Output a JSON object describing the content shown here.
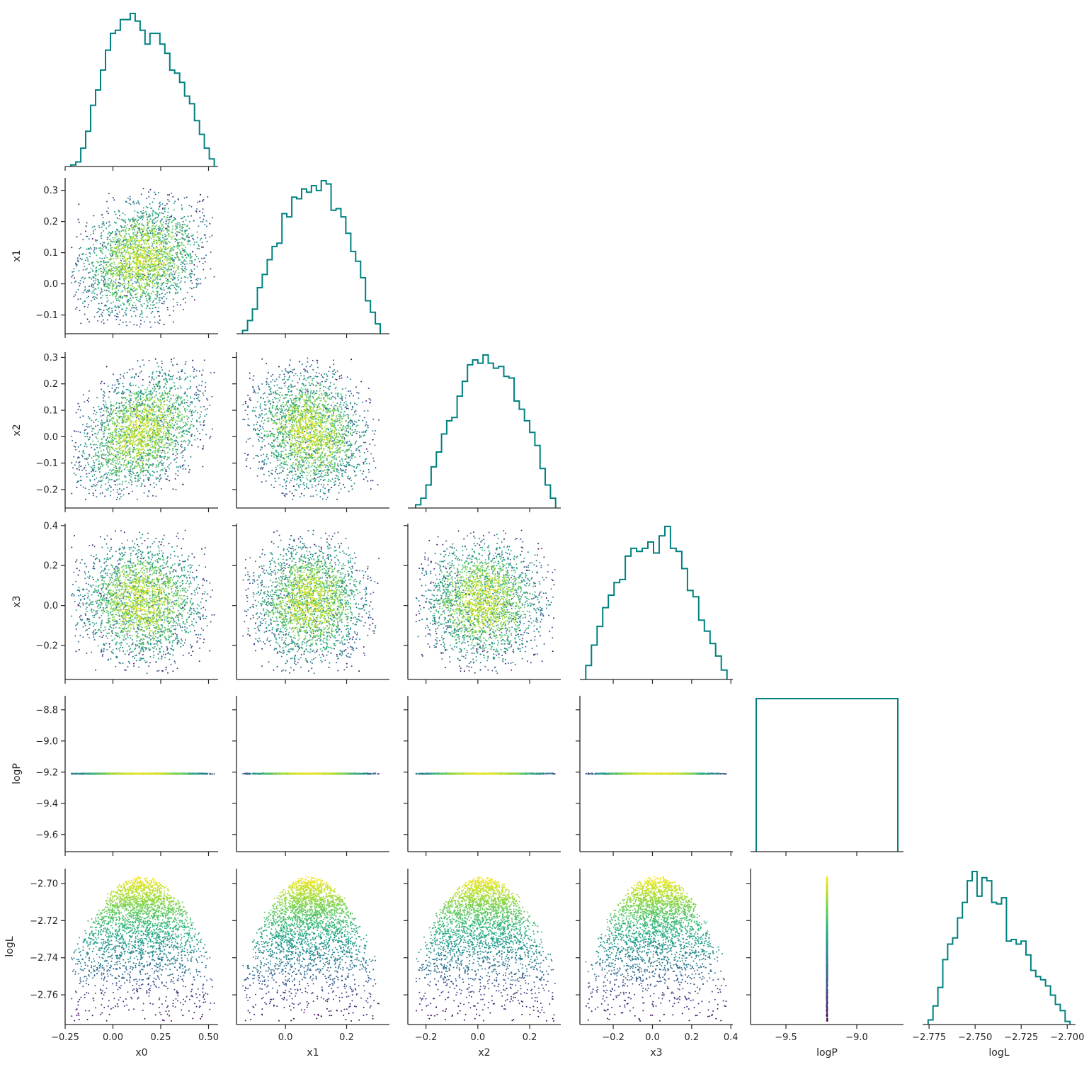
{
  "figure": {
    "type": "corner-plot",
    "variables": [
      "x0",
      "x1",
      "x2",
      "x3",
      "logP",
      "logL"
    ],
    "x_axis_labels": [
      "x0",
      "x1",
      "x2",
      "x3",
      "logP",
      "logL"
    ],
    "y_axis_labels": [
      "",
      "x1",
      "x2",
      "x3",
      "logP",
      "logL"
    ],
    "histogram_color": "#008080",
    "scatter_colormap": "viridis",
    "scatter_color_by": "logL"
  },
  "chart_data": [
    {
      "type": "histogram",
      "variable": "x0",
      "xlim": [
        -0.25,
        0.55
      ],
      "xticks": [
        -0.25,
        0.0,
        0.25,
        0.5
      ],
      "xtick_labels": [
        "−0.25",
        "0.00",
        "0.25",
        "0.50"
      ],
      "bins": [
        -0.22,
        0.53
      ],
      "counts": [
        0.01,
        0.03,
        0.12,
        0.23,
        0.4,
        0.5,
        0.63,
        0.76,
        0.87,
        0.89,
        0.96,
        0.96,
        1.0,
        0.95,
        0.89,
        0.8,
        0.87,
        0.87,
        0.8,
        0.74,
        0.63,
        0.61,
        0.55,
        0.46,
        0.41,
        0.3,
        0.21,
        0.12,
        0.05
      ]
    },
    {
      "type": "scatter",
      "x": "x0",
      "y": "x1",
      "xlim": [
        -0.25,
        0.55
      ],
      "ylim": [
        -0.16,
        0.34
      ],
      "yticks": [
        -0.1,
        0.0,
        0.1,
        0.2,
        0.3
      ],
      "ytick_labels": [
        "−0.1",
        "0.0",
        "0.1",
        "0.2",
        "0.3"
      ],
      "n_points": 5000
    },
    {
      "type": "histogram",
      "variable": "x1",
      "xlim": [
        -0.16,
        0.34
      ],
      "xticks": [
        0.0,
        0.2
      ],
      "xtick_labels": [
        "0.0",
        "0.2"
      ],
      "bins": [
        -0.14,
        0.31
      ],
      "counts": [
        0.02,
        0.08,
        0.15,
        0.28,
        0.36,
        0.45,
        0.53,
        0.55,
        0.73,
        0.71,
        0.83,
        0.82,
        0.88,
        0.86,
        0.9,
        0.87,
        0.93,
        0.91,
        0.75,
        0.76,
        0.71,
        0.61,
        0.5,
        0.44,
        0.34,
        0.2,
        0.13,
        0.06
      ]
    },
    {
      "type": "scatter",
      "x": "x0",
      "y": "x2",
      "xlim": [
        -0.25,
        0.55
      ],
      "ylim": [
        -0.27,
        0.32
      ],
      "yticks": [
        -0.2,
        -0.1,
        0.0,
        0.1,
        0.2,
        0.3
      ],
      "ytick_labels": [
        "−0.2",
        "−0.1",
        "0.0",
        "0.1",
        "0.2",
        "0.3"
      ],
      "n_points": 5000
    },
    {
      "type": "scatter",
      "x": "x1",
      "y": "x2",
      "xlim": [
        -0.16,
        0.34
      ],
      "ylim": [
        -0.27,
        0.32
      ],
      "n_points": 5000
    },
    {
      "type": "histogram",
      "variable": "x2",
      "xlim": [
        -0.27,
        0.32
      ],
      "xticks": [
        -0.2,
        0.0,
        0.2
      ],
      "xtick_labels": [
        "−0.2",
        "0.0",
        "0.2"
      ],
      "bins": [
        -0.24,
        0.3
      ],
      "counts": [
        0.02,
        0.06,
        0.14,
        0.25,
        0.34,
        0.45,
        0.53,
        0.55,
        0.68,
        0.77,
        0.87,
        0.9,
        0.88,
        0.93,
        0.88,
        0.85,
        0.86,
        0.8,
        0.79,
        0.65,
        0.6,
        0.53,
        0.46,
        0.38,
        0.24,
        0.14,
        0.06
      ]
    },
    {
      "type": "scatter",
      "x": "x0",
      "y": "x3",
      "xlim": [
        -0.25,
        0.55
      ],
      "ylim": [
        -0.37,
        0.41
      ],
      "yticks": [
        -0.2,
        0.0,
        0.2,
        0.4
      ],
      "ytick_labels": [
        "−0.2",
        "0.0",
        "0.2",
        "0.4"
      ],
      "n_points": 5000
    },
    {
      "type": "scatter",
      "x": "x1",
      "y": "x3",
      "xlim": [
        -0.16,
        0.34
      ],
      "ylim": [
        -0.37,
        0.41
      ],
      "n_points": 5000
    },
    {
      "type": "scatter",
      "x": "x2",
      "y": "x3",
      "xlim": [
        -0.27,
        0.32
      ],
      "ylim": [
        -0.37,
        0.41
      ],
      "n_points": 5000
    },
    {
      "type": "histogram",
      "variable": "x3",
      "xlim": [
        -0.37,
        0.41
      ],
      "xticks": [
        -0.2,
        0.0,
        0.2,
        0.4
      ],
      "xtick_labels": [
        "−0.2",
        "0.0",
        "0.2",
        "0.4"
      ],
      "bins": [
        -0.34,
        0.38
      ],
      "counts": [
        0.09,
        0.22,
        0.34,
        0.46,
        0.54,
        0.62,
        0.64,
        0.79,
        0.84,
        0.82,
        0.84,
        0.88,
        0.81,
        0.92,
        0.98,
        0.84,
        0.82,
        0.71,
        0.57,
        0.53,
        0.38,
        0.31,
        0.23,
        0.15,
        0.06
      ]
    },
    {
      "type": "scatter",
      "x": "x0",
      "y": "logP",
      "xlim": [
        -0.25,
        0.55
      ],
      "ylim": [
        -9.71,
        -8.71
      ],
      "yticks": [
        -9.6,
        -9.4,
        -9.2,
        -9.0,
        -8.8
      ],
      "ytick_labels": [
        "−9.6",
        "−9.4",
        "−9.2",
        "−9.0",
        "−8.8"
      ],
      "y_constant": -9.21,
      "n_points": 5000
    },
    {
      "type": "scatter",
      "x": "x1",
      "y": "logP",
      "xlim": [
        -0.16,
        0.34
      ],
      "ylim": [
        -9.71,
        -8.71
      ],
      "y_constant": -9.21,
      "n_points": 5000
    },
    {
      "type": "scatter",
      "x": "x2",
      "y": "logP",
      "xlim": [
        -0.27,
        0.32
      ],
      "ylim": [
        -9.71,
        -8.71
      ],
      "y_constant": -9.21,
      "n_points": 5000
    },
    {
      "type": "scatter",
      "x": "x3",
      "y": "logP",
      "xlim": [
        -0.37,
        0.41
      ],
      "ylim": [
        -9.71,
        -8.71
      ],
      "y_constant": -9.21,
      "n_points": 5000
    },
    {
      "type": "histogram",
      "variable": "logP",
      "xlim": [
        -9.75,
        -8.67
      ],
      "xticks": [
        -9.5,
        -9.0
      ],
      "xtick_labels": [
        "−9.5",
        "−9.0"
      ],
      "bins": [
        -9.71,
        -8.71
      ],
      "counts": [
        1.0
      ]
    },
    {
      "type": "scatter",
      "x": "x0",
      "y": "logL",
      "xlim": [
        -0.25,
        0.55
      ],
      "ylim": [
        -2.776,
        -2.692
      ],
      "yticks": [
        -2.76,
        -2.74,
        -2.72,
        -2.7
      ],
      "ytick_labels": [
        "−2.76",
        "−2.74",
        "−2.72",
        "−2.70"
      ],
      "n_points": 5000
    },
    {
      "type": "scatter",
      "x": "x1",
      "y": "logL",
      "xlim": [
        -0.16,
        0.34
      ],
      "ylim": [
        -2.776,
        -2.692
      ],
      "n_points": 5000
    },
    {
      "type": "scatter",
      "x": "x2",
      "y": "logL",
      "xlim": [
        -0.27,
        0.32
      ],
      "ylim": [
        -2.776,
        -2.692
      ],
      "n_points": 5000
    },
    {
      "type": "scatter",
      "x": "x3",
      "y": "logL",
      "xlim": [
        -0.37,
        0.41
      ],
      "ylim": [
        -2.776,
        -2.692
      ],
      "n_points": 5000
    },
    {
      "type": "scatter",
      "x": "logP",
      "y": "logL",
      "xlim": [
        -9.75,
        -8.67
      ],
      "ylim": [
        -2.776,
        -2.692
      ],
      "x_constant": -9.21,
      "n_points": 5000
    },
    {
      "type": "histogram",
      "variable": "logL",
      "xlim": [
        -2.7785,
        -2.6955
      ],
      "xticks": [
        -2.775,
        -2.75,
        -2.725,
        -2.7
      ],
      "xtick_labels": [
        "−2.775",
        "−2.750",
        "−2.725",
        "−2.700"
      ],
      "bins": [
        -2.7755,
        -2.6985
      ],
      "counts": [
        0.03,
        0.12,
        0.24,
        0.42,
        0.52,
        0.56,
        0.69,
        0.79,
        0.93,
        0.99,
        0.83,
        0.95,
        0.93,
        0.79,
        0.78,
        0.82,
        0.54,
        0.55,
        0.52,
        0.54,
        0.45,
        0.35,
        0.31,
        0.29,
        0.25,
        0.19,
        0.13,
        0.09,
        0.02
      ]
    }
  ]
}
